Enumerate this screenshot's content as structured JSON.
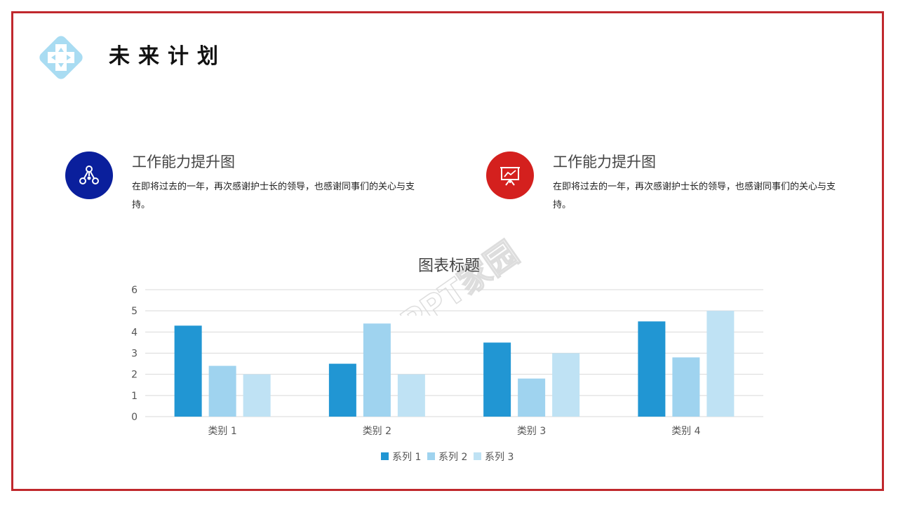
{
  "page": {
    "title": "未来计划",
    "accent_color": "#c0282d",
    "logo_icon": "medical-cross-diamond-icon"
  },
  "features": [
    {
      "icon": "network-nodes-icon",
      "icon_bg": "#0a1f9c",
      "title": "工作能力提升图",
      "desc": "在即将过去的一年，再次感谢护士长的领导，也感谢同事们的关心与支持。"
    },
    {
      "icon": "presentation-board-icon",
      "icon_bg": "#d4201e",
      "title": "工作能力提升图",
      "desc": "在即将过去的一年，再次感谢护士长的领导，也感谢同事们的关心与支持。"
    }
  ],
  "watermark": {
    "text": "PPT家园"
  },
  "chart_data": {
    "type": "bar",
    "title": "图表标题",
    "categories": [
      "类别 1",
      "类别 2",
      "类别 3",
      "类别 4"
    ],
    "series": [
      {
        "name": "系列 1",
        "values": [
          4.3,
          2.5,
          3.5,
          4.5
        ],
        "color": "#2196d3"
      },
      {
        "name": "系列 2",
        "values": [
          2.4,
          4.4,
          1.8,
          2.8
        ],
        "color": "#9fd3ef"
      },
      {
        "name": "系列 3",
        "values": [
          2.0,
          2.0,
          3.0,
          5.0
        ],
        "color": "#bfe2f4"
      }
    ],
    "ylim": [
      0,
      6
    ],
    "yticks": [
      "0",
      "1",
      "2",
      "3",
      "4",
      "5",
      "6"
    ],
    "grid": true,
    "legend": "bottom"
  }
}
